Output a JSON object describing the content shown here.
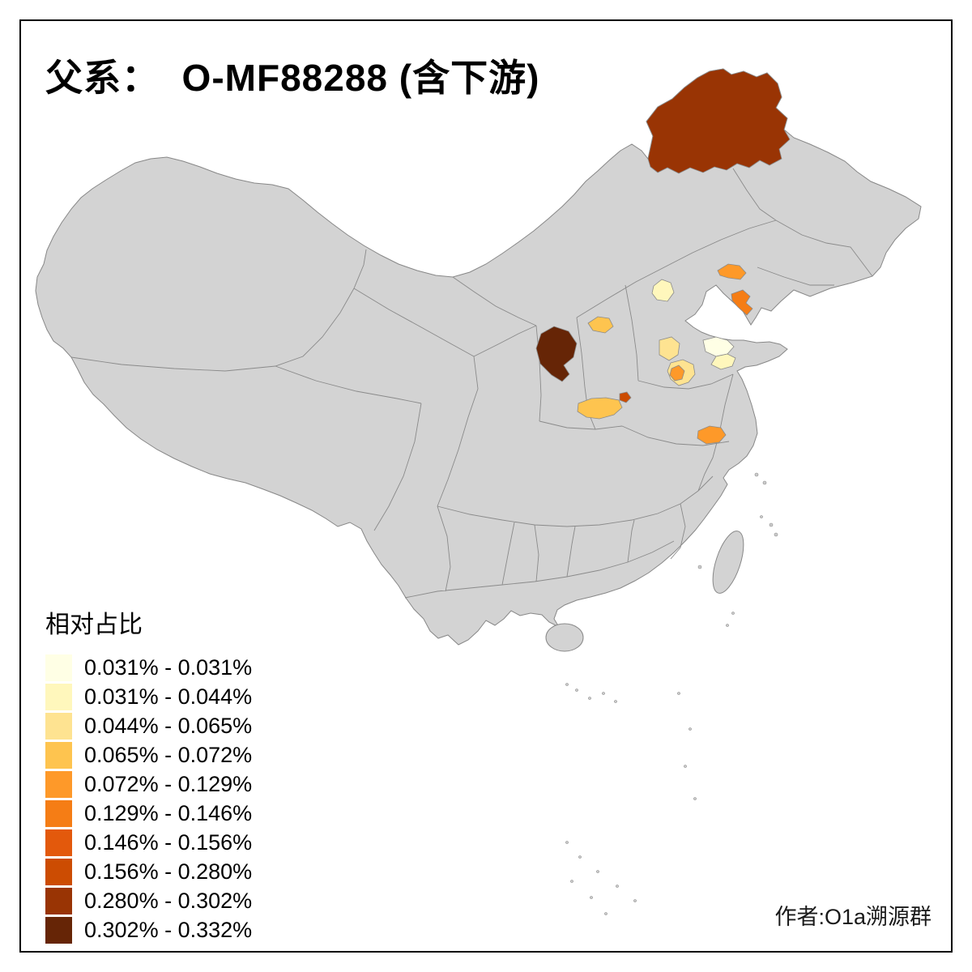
{
  "title": "父系：  O-MF88288 (含下游)",
  "legend": {
    "title": "相对占比",
    "items": [
      {
        "label": "0.031% - 0.031%",
        "color": "#FFFFE5"
      },
      {
        "label": "0.031% - 0.044%",
        "color": "#FFF7BC"
      },
      {
        "label": "0.044% - 0.065%",
        "color": "#FEE391"
      },
      {
        "label": "0.065% - 0.072%",
        "color": "#FEC44F"
      },
      {
        "label": "0.072% - 0.129%",
        "color": "#FE9929"
      },
      {
        "label": "0.129% - 0.146%",
        "color": "#F57D15"
      },
      {
        "label": "0.146% - 0.156%",
        "color": "#E3590C"
      },
      {
        "label": "0.156% - 0.280%",
        "color": "#CC4C02"
      },
      {
        "label": "0.280% - 0.302%",
        "color": "#993404"
      },
      {
        "label": "0.302% - 0.332%",
        "color": "#662506"
      }
    ]
  },
  "credit": "作者:O1a溯源群",
  "map": {
    "land_color": "#d3d3d3",
    "border_color": "#8a8a8a",
    "regions": [
      {
        "id": "region-northeast-large",
        "color": "#993404"
      },
      {
        "id": "region-central-darkest",
        "color": "#662506"
      },
      {
        "id": "region-liaoning-west",
        "color": "#FE9929"
      },
      {
        "id": "region-liaoning-peninsula",
        "color": "#F57D15"
      },
      {
        "id": "region-beijing-pale",
        "color": "#FFF7BC"
      },
      {
        "id": "region-north-amber",
        "color": "#FEC44F"
      },
      {
        "id": "region-hebei-south-yellow",
        "color": "#FEE391"
      },
      {
        "id": "region-shandong-pale-1",
        "color": "#FFFFE5"
      },
      {
        "id": "region-shandong-pale-2",
        "color": "#FFF7BC"
      },
      {
        "id": "region-henan-yellow",
        "color": "#FEE391"
      },
      {
        "id": "region-henan-orange",
        "color": "#FE9929"
      },
      {
        "id": "region-small-dark-orange",
        "color": "#CC4C02"
      },
      {
        "id": "region-south-shaanxi-amber",
        "color": "#FEC44F"
      },
      {
        "id": "region-anhui-orange",
        "color": "#FE9929"
      }
    ]
  }
}
